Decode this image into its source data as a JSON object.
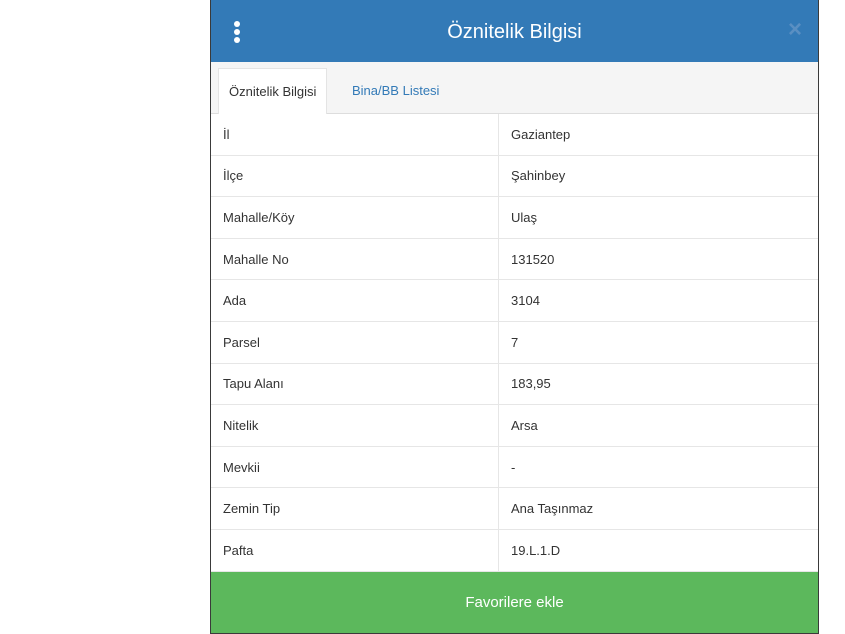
{
  "header": {
    "title": "Öznitelik Bilgisi",
    "menu_icon": "vertical-dots-icon",
    "close_icon": "close-icon"
  },
  "tabs": [
    {
      "label": "Öznitelik Bilgisi",
      "active": true
    },
    {
      "label": "Bina/BB Listesi",
      "active": false
    }
  ],
  "rows": [
    {
      "key": "İl",
      "value": "Gaziantep"
    },
    {
      "key": "İlçe",
      "value": "Şahinbey"
    },
    {
      "key": "Mahalle/Köy",
      "value": "Ulaş"
    },
    {
      "key": "Mahalle No",
      "value": "131520"
    },
    {
      "key": "Ada",
      "value": "3104"
    },
    {
      "key": "Parsel",
      "value": "7"
    },
    {
      "key": "Tapu Alanı",
      "value": "183,95"
    },
    {
      "key": "Nitelik",
      "value": "Arsa"
    },
    {
      "key": "Mevkii",
      "value": "-"
    },
    {
      "key": "Zemin Tip",
      "value": "Ana Taşınmaz"
    },
    {
      "key": "Pafta",
      "value": "19.L.1.D"
    }
  ],
  "footer": {
    "button_label": "Favorilere ekle"
  },
  "colors": {
    "header": "#337ab7",
    "button": "#5cb85c",
    "link": "#337ab7"
  }
}
